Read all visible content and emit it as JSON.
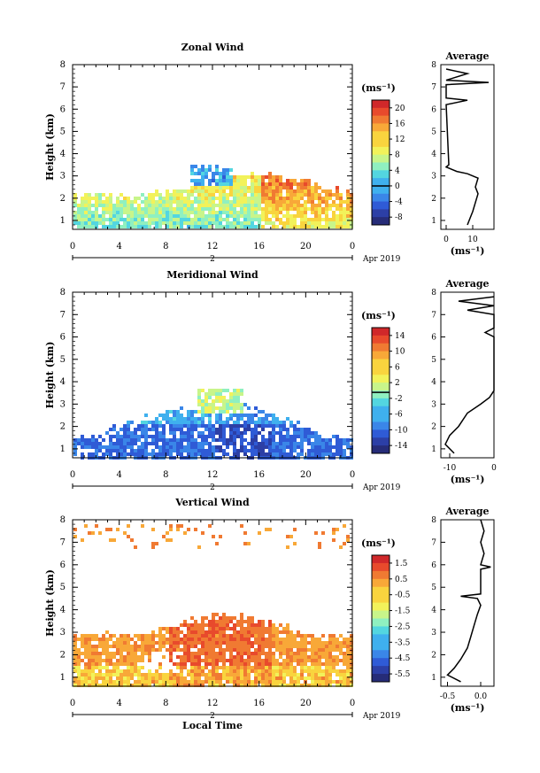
{
  "x_axis": {
    "ticks": [
      "0",
      "4",
      "8",
      "12",
      "16",
      "20",
      "0"
    ],
    "day_label": "2",
    "month_label": "Apr 2019",
    "xlabel": "Local Time"
  },
  "height_axis": {
    "ylabel": "Height (km)",
    "ticks": [
      "1",
      "2",
      "3",
      "4",
      "5",
      "6",
      "7",
      "8"
    ]
  },
  "average_title": "Average",
  "unit_label": "(ms⁻¹)",
  "chart_data": [
    {
      "type": "heatmap",
      "title": "Zonal Wind",
      "ylabel": "Height (km)",
      "xlabel": "",
      "x_range_hours": [
        0,
        24
      ],
      "y_range_km": [
        0.6,
        8.0
      ],
      "colorbar": {
        "ticks": [
          "20",
          "16",
          "12",
          "8",
          "4",
          "0",
          "-4",
          "-8"
        ],
        "min": -10,
        "max": 22,
        "zero_line": 0
      },
      "average_profile": {
        "xlim": [
          -2,
          18
        ],
        "xticks": [
          "0",
          "10"
        ],
        "points": [
          [
            8,
            0.8
          ],
          [
            9,
            1.1
          ],
          [
            10,
            1.4
          ],
          [
            11,
            1.8
          ],
          [
            12,
            2.2
          ],
          [
            11,
            2.5
          ],
          [
            12,
            2.9
          ],
          [
            8,
            3.1
          ],
          [
            4,
            3.2
          ],
          [
            0,
            3.4
          ],
          [
            1,
            3.5
          ],
          [
            0,
            6.2
          ],
          [
            8,
            6.4
          ],
          [
            0,
            6.5
          ],
          [
            0,
            7.1
          ],
          [
            16,
            7.2
          ],
          [
            0,
            7.3
          ],
          [
            8,
            7.6
          ],
          [
            0,
            7.8
          ]
        ]
      },
      "region_note": "Data mostly 0.8–3.3 km; positive (eastward) winds 4–20 ms⁻¹ with a small negative patch near 10–13 h at 2.7–3.6 km"
    },
    {
      "type": "heatmap",
      "title": "Meridional Wind",
      "ylabel": "Height (km)",
      "xlabel": "",
      "x_range_hours": [
        0,
        24
      ],
      "y_range_km": [
        0.6,
        8.0
      ],
      "colorbar": {
        "ticks": [
          "14",
          "10",
          "6",
          "2",
          "-2",
          "-6",
          "-10",
          "-14"
        ],
        "min": -16,
        "max": 17,
        "zero_line": 0
      },
      "average_profile": {
        "xlim": [
          -12,
          0
        ],
        "xticks": [
          "-10",
          "0"
        ],
        "points": [
          [
            -9,
            0.8
          ],
          [
            -11,
            1.2
          ],
          [
            -10,
            1.6
          ],
          [
            -8,
            2.0
          ],
          [
            -6,
            2.6
          ],
          [
            -3,
            3.0
          ],
          [
            -1,
            3.3
          ],
          [
            0,
            3.6
          ],
          [
            0,
            6.0
          ],
          [
            -2,
            6.2
          ],
          [
            0,
            6.4
          ],
          [
            0,
            7.0
          ],
          [
            -6,
            7.2
          ],
          [
            0,
            7.4
          ],
          [
            -8,
            7.6
          ],
          [
            0,
            7.8
          ]
        ]
      },
      "region_note": "Negative (southward) winds dominate below 3 km; small positive patch 10–15 h at 2.6–3.8 km"
    },
    {
      "type": "heatmap",
      "title": "Vertical Wind",
      "ylabel": "Height (km)",
      "xlabel": "Local Time",
      "x_range_hours": [
        0,
        24
      ],
      "y_range_km": [
        0.6,
        8.0
      ],
      "colorbar": {
        "ticks": [
          "1.5",
          "0.5",
          "-0.5",
          "-1.5",
          "-2.5",
          "-3.5",
          "-4.5",
          "-5.5"
        ],
        "min": -6,
        "max": 2
      },
      "average_profile": {
        "xlim": [
          -0.6,
          0.2
        ],
        "xticks": [
          "-0.5",
          "0.0"
        ],
        "points": [
          [
            -0.3,
            0.8
          ],
          [
            -0.5,
            1.1
          ],
          [
            -0.4,
            1.4
          ],
          [
            -0.3,
            1.8
          ],
          [
            -0.2,
            2.3
          ],
          [
            -0.15,
            2.8
          ],
          [
            -0.1,
            3.3
          ],
          [
            -0.05,
            3.8
          ],
          [
            0.0,
            4.2
          ],
          [
            -0.05,
            4.5
          ],
          [
            -0.3,
            4.6
          ],
          [
            0.0,
            4.7
          ],
          [
            0.0,
            5.8
          ],
          [
            0.15,
            5.9
          ],
          [
            0.0,
            6.0
          ],
          [
            0.05,
            6.5
          ],
          [
            0.0,
            7.0
          ],
          [
            0.05,
            7.5
          ],
          [
            0.0,
            8.0
          ]
        ]
      },
      "region_note": "Weak downward motion (yellow/orange) up to ~3.8 km; scattered echoes near 7–8 km"
    }
  ]
}
